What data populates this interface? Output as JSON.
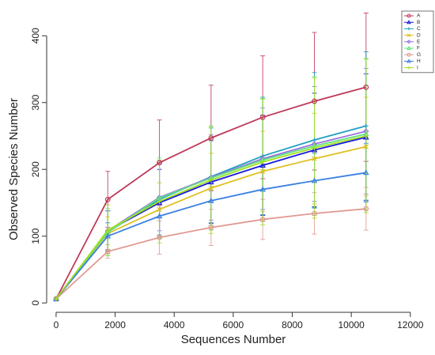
{
  "chart_data": {
    "type": "line",
    "xlabel": "Sequences Number",
    "ylabel": "Observed Species Number",
    "x": [
      0,
      1750,
      3500,
      5250,
      7000,
      8750,
      10500
    ],
    "xlim": [
      -320,
      12300
    ],
    "xticks": [
      0,
      2000,
      4000,
      6000,
      8000,
      10000,
      12000
    ],
    "ylim": [
      -14,
      437
    ],
    "yticks": [
      0,
      100,
      200,
      300,
      400
    ],
    "legend": "top-right",
    "series": [
      {
        "name": "A",
        "color": "#c0395a",
        "marker": "circle",
        "values": [
          6,
          155,
          210,
          247,
          278,
          302,
          323
        ],
        "errors": [
          0,
          42,
          64,
          79,
          92,
          103,
          111
        ]
      },
      {
        "name": "B",
        "color": "#1a1adb",
        "marker": "triangle",
        "values": [
          6,
          108,
          150,
          181,
          206,
          229,
          248
        ],
        "errors": [
          0,
          30,
          50,
          62,
          75,
          85,
          95
        ]
      },
      {
        "name": "C",
        "color": "#20a0c0",
        "marker": "plus",
        "values": [
          6,
          106,
          155,
          189,
          220,
          244,
          265
        ],
        "errors": [
          0,
          32,
          55,
          73,
          88,
          101,
          111
        ]
      },
      {
        "name": "D",
        "color": "#e0c020",
        "marker": "x",
        "values": [
          6,
          104,
          140,
          172,
          197,
          216,
          234
        ],
        "errors": [
          0,
          25,
          40,
          52,
          60,
          68,
          74
        ]
      },
      {
        "name": "E",
        "color": "#9a70e0",
        "marker": "diamond",
        "values": [
          6,
          108,
          158,
          188,
          216,
          238,
          257
        ],
        "errors": [
          0,
          30,
          50,
          64,
          76,
          86,
          94
        ]
      },
      {
        "name": "F",
        "color": "#60e080",
        "marker": "triangle",
        "values": [
          6,
          106,
          157,
          187,
          214,
          235,
          253
        ],
        "errors": [
          0,
          35,
          60,
          78,
          92,
          104,
          113
        ]
      },
      {
        "name": "G",
        "color": "#e09a90",
        "marker": "circle",
        "values": [
          6,
          77,
          98,
          113,
          125,
          134,
          141
        ],
        "errors": [
          0,
          10,
          25,
          27,
          30,
          31,
          32
        ]
      },
      {
        "name": "H",
        "color": "#3a80e0",
        "marker": "triangle",
        "values": [
          6,
          100,
          130,
          153,
          170,
          183,
          195
        ],
        "errors": [
          0,
          20,
          28,
          33,
          38,
          41,
          44
        ]
      },
      {
        "name": "I",
        "color": "#a0e020",
        "marker": "plus",
        "values": [
          6,
          109,
          152,
          184,
          211,
          232,
          250
        ],
        "errors": [
          0,
          38,
          62,
          80,
          94,
          105,
          115
        ]
      }
    ]
  }
}
